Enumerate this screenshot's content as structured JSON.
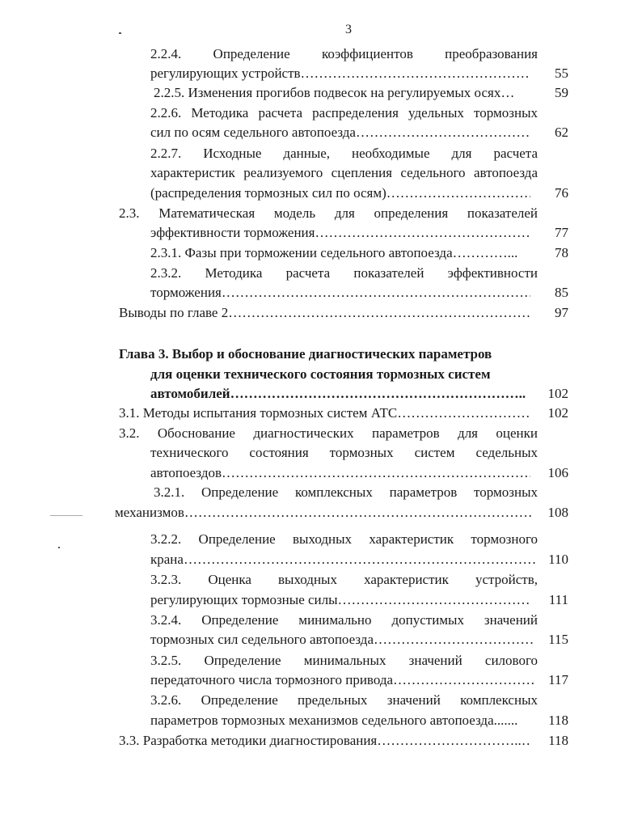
{
  "page_number": "3",
  "toc": [
    {
      "lines": [
        "2.2.4. Определение коэффициентов преобразования",
        "регулирующих устройств………………………………………………….."
      ],
      "page": "55"
    },
    {
      "lines": [
        "2.2.5. Изменения прогибов подвесок на регулируемых осях…"
      ],
      "page": "59"
    },
    {
      "lines": [
        "2.2.6. Методика расчета распределения удельных тормозных",
        "сил по осям седельного автопоезда……………………………………..."
      ],
      "page": "62"
    },
    {
      "lines": [
        "2.2.7. Исходные данные, необходимые для расчета",
        "характеристик реализуемого сцепления седельного автопоезда",
        "(распределения тормозных сил по осям)………………………………"
      ],
      "page": "76"
    },
    {
      "lines": [
        "2.3. Математическая модель для определения показателей",
        "эффективности торможения……………………………………………….."
      ],
      "page": "77"
    },
    {
      "lines": [
        "2.3.1. Фазы при торможении седельного автопоезда…………..."
      ],
      "page": "78"
    },
    {
      "lines": [
        "2.3.2. Методика расчета показателей эффективности",
        "торможения……………………………………………………………….."
      ],
      "page": "85"
    },
    {
      "lines": [
        "Выводы по главе 2………………………………………………………….."
      ],
      "page": "97"
    },
    {
      "lines": [
        "Глава 3. Выбор и обоснование диагностических параметров",
        "для оценки технического состояния тормозных систем",
        "автомобилей……………………………………………………….."
      ],
      "page": "102"
    },
    {
      "lines": [
        "3.1. Методы испытания тормозных систем АТС………………………….."
      ],
      "page": "102"
    },
    {
      "lines": [
        "3.2. Обоснование диагностических параметров для оценки",
        "технического состояния тормозных систем седельных",
        "автопоездов………………………………………………………………….."
      ],
      "page": "106"
    },
    {
      "lines": [
        "3.2.1. Определение комплексных параметров тормозных",
        "механизмов…………………………………………………………………………"
      ],
      "page": "108"
    },
    {
      "lines": [
        "3.2.2. Определение выходных характеристик тормозного",
        "крана……………………………………………………………………………….."
      ],
      "page": "110"
    },
    {
      "lines": [
        "3.2.3. Оценка выходных характеристик устройств,",
        "регулирующих тормозные силы…………………………………………"
      ],
      "page": "111"
    },
    {
      "lines": [
        "3.2.4. Определение минимально допустимых значений",
        "тормозных сил седельного автопоезда………………………………….."
      ],
      "page": "115"
    },
    {
      "lines": [
        "3.2.5. Определение минимальных значений силового",
        "передаточного числа тормозного привода………………………………"
      ],
      "page": "117"
    },
    {
      "lines": [
        "3.2.6. Определение предельных значений комплексных",
        "параметров тормозных механизмов седельного автопоезда......."
      ],
      "page": "118"
    },
    {
      "lines": [
        "3.3. Разработка методики диагностирования…………………………..……"
      ],
      "page": "118"
    }
  ]
}
